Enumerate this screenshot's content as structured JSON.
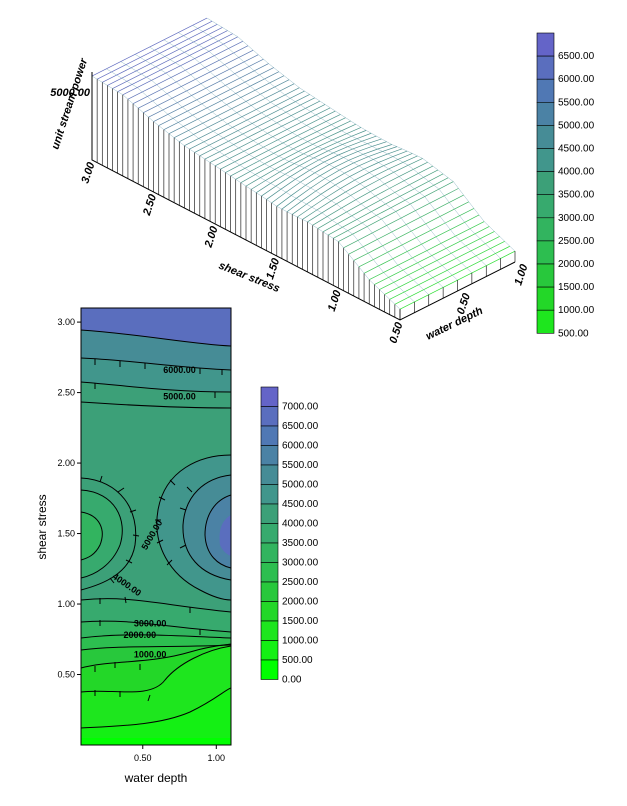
{
  "chart_data": [
    {
      "type": "surface",
      "xlabel": "shear stress",
      "ylabel": "water depth",
      "zlabel": "unit stream power",
      "x_ticks": [
        "3.00",
        "2.50",
        "2.00",
        "1.50",
        "1.00",
        "0.50"
      ],
      "y_ticks": [
        "0.50",
        "1.00"
      ],
      "z_ticks": [
        "5000.00"
      ],
      "z_range": [
        500,
        6500
      ],
      "legend_labels": [
        "6500.00",
        "6000.00",
        "5500.00",
        "5000.00",
        "4500.00",
        "4000.00",
        "3500.00",
        "3000.00",
        "2500.00",
        "2000.00",
        "1500.00",
        "1000.00",
        "500.00"
      ],
      "legend_colors": [
        "#6464c8",
        "#5a6ebe",
        "#5078b4",
        "#4b82a5",
        "#468c96",
        "#41968c",
        "#3ca078",
        "#37aa6e",
        "#32b45f",
        "#2dbe50",
        "#28c83c",
        "#23d728",
        "#1ee61e"
      ],
      "profile": {
        "shear_stress": [
          3.0,
          2.75,
          2.5,
          2.25,
          2.0,
          1.75,
          1.5,
          1.25,
          1.0,
          0.75,
          0.5
        ],
        "unit_stream_power": [
          6200,
          6000,
          5200,
          4600,
          4300,
          4000,
          3800,
          3900,
          3500,
          1800,
          800
        ]
      }
    },
    {
      "type": "contour",
      "xlabel": "water depth",
      "ylabel": "shear stress",
      "xlim": [
        0.08,
        1.1
      ],
      "ylim": [
        0.0,
        3.1
      ],
      "x_ticks": [
        0.5,
        1.0
      ],
      "x_tick_labels": [
        "0.50",
        "1.00"
      ],
      "y_ticks": [
        0.5,
        1.0,
        1.5,
        2.0,
        2.5,
        3.0
      ],
      "y_tick_labels": [
        "0.50",
        "1.00",
        "1.50",
        "2.00",
        "2.50",
        "3.00"
      ],
      "contour_labels": [
        {
          "text": "6000.00",
          "x": 0.75,
          "y": 2.64
        },
        {
          "text": "5000.00",
          "x": 0.75,
          "y": 2.45
        },
        {
          "text": "5000.00",
          "x": 0.58,
          "y": 1.48,
          "angle": -60
        },
        {
          "text": "4000.00",
          "x": 0.38,
          "y": 1.12,
          "angle": 35
        },
        {
          "text": "3000.00",
          "x": 0.55,
          "y": 0.84
        },
        {
          "text": "2000.00",
          "x": 0.48,
          "y": 0.76
        },
        {
          "text": "1000.00",
          "x": 0.55,
          "y": 0.62
        }
      ],
      "legend_labels": [
        "7000.00",
        "6500.00",
        "6000.00",
        "5500.00",
        "5000.00",
        "4500.00",
        "4000.00",
        "3500.00",
        "3000.00",
        "2500.00",
        "2000.00",
        "1500.00",
        "1000.00",
        "500.00",
        "0.00"
      ],
      "legend_colors": [
        "#6464c8",
        "#5a6ebe",
        "#5078b4",
        "#4b82a5",
        "#468c96",
        "#41968c",
        "#3ca078",
        "#37aa6e",
        "#32b45f",
        "#2dbe50",
        "#28c83c",
        "#23d728",
        "#1ee61e",
        "#14f014",
        "#00ff00"
      ]
    }
  ]
}
